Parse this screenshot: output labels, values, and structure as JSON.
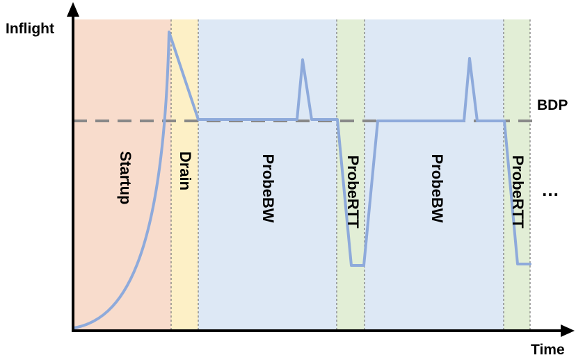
{
  "axes": {
    "y_label": "Inflight",
    "x_label": "Time"
  },
  "reference_line": {
    "label": "BDP",
    "color": "#888888"
  },
  "phases": [
    {
      "label": "Startup",
      "color": "#f8dccc"
    },
    {
      "label": "Drain",
      "color": "#fdf0c6"
    },
    {
      "label": "ProbeBW",
      "color": "#dde8f5"
    },
    {
      "label": "ProbeRTT",
      "color": "#e2eed6"
    },
    {
      "label": "ProbeBW",
      "color": "#dde8f5"
    },
    {
      "label": "ProbeRTT",
      "color": "#e2eed6"
    }
  ],
  "continuation": "…",
  "curve_color": "#8eaadb",
  "divider_color": "#7f7f7f"
}
